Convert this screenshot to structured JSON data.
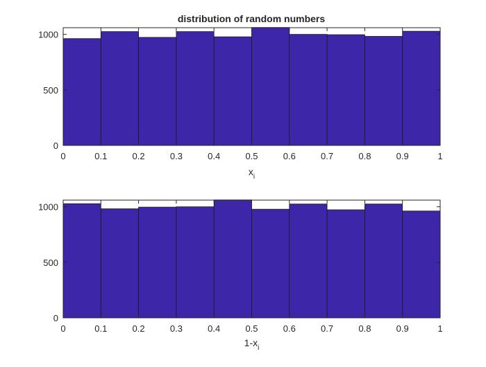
{
  "chart_data": [
    {
      "type": "bar",
      "subtype": "histogram",
      "title": "distribution of random numbers",
      "xlabel": {
        "main": "x",
        "sub": "i"
      },
      "ylabel": "",
      "xlim": [
        0,
        1
      ],
      "ylim": [
        0,
        1060
      ],
      "xticks": [
        "0",
        "0.1",
        "0.2",
        "0.3",
        "0.4",
        "0.5",
        "0.6",
        "0.7",
        "0.8",
        "0.9",
        "1"
      ],
      "yticks": [
        "0",
        "500",
        "1000"
      ],
      "bin_edges": [
        0,
        0.1,
        0.2,
        0.3,
        0.4,
        0.5,
        0.6,
        0.7,
        0.8,
        0.9,
        1.0
      ],
      "values": [
        962,
        1025,
        973,
        1025,
        978,
        1062,
        1000,
        997,
        982,
        1028
      ],
      "bar_color": "#3d26a8",
      "grid": false
    },
    {
      "type": "bar",
      "subtype": "histogram",
      "title": "",
      "xlabel": {
        "main": "1-x",
        "sub": "i"
      },
      "ylabel": "",
      "xlim": [
        0,
        1
      ],
      "ylim": [
        0,
        1060
      ],
      "xticks": [
        "0",
        "0.1",
        "0.2",
        "0.3",
        "0.4",
        "0.5",
        "0.6",
        "0.7",
        "0.8",
        "0.9",
        "1"
      ],
      "yticks": [
        "0",
        "500",
        "1000"
      ],
      "bin_edges": [
        0,
        0.1,
        0.2,
        0.3,
        0.4,
        0.5,
        0.6,
        0.7,
        0.8,
        0.9,
        1.0
      ],
      "values": [
        1028,
        982,
        997,
        1000,
        1062,
        978,
        1025,
        973,
        1025,
        962
      ],
      "bar_color": "#3d26a8",
      "grid": false
    }
  ]
}
